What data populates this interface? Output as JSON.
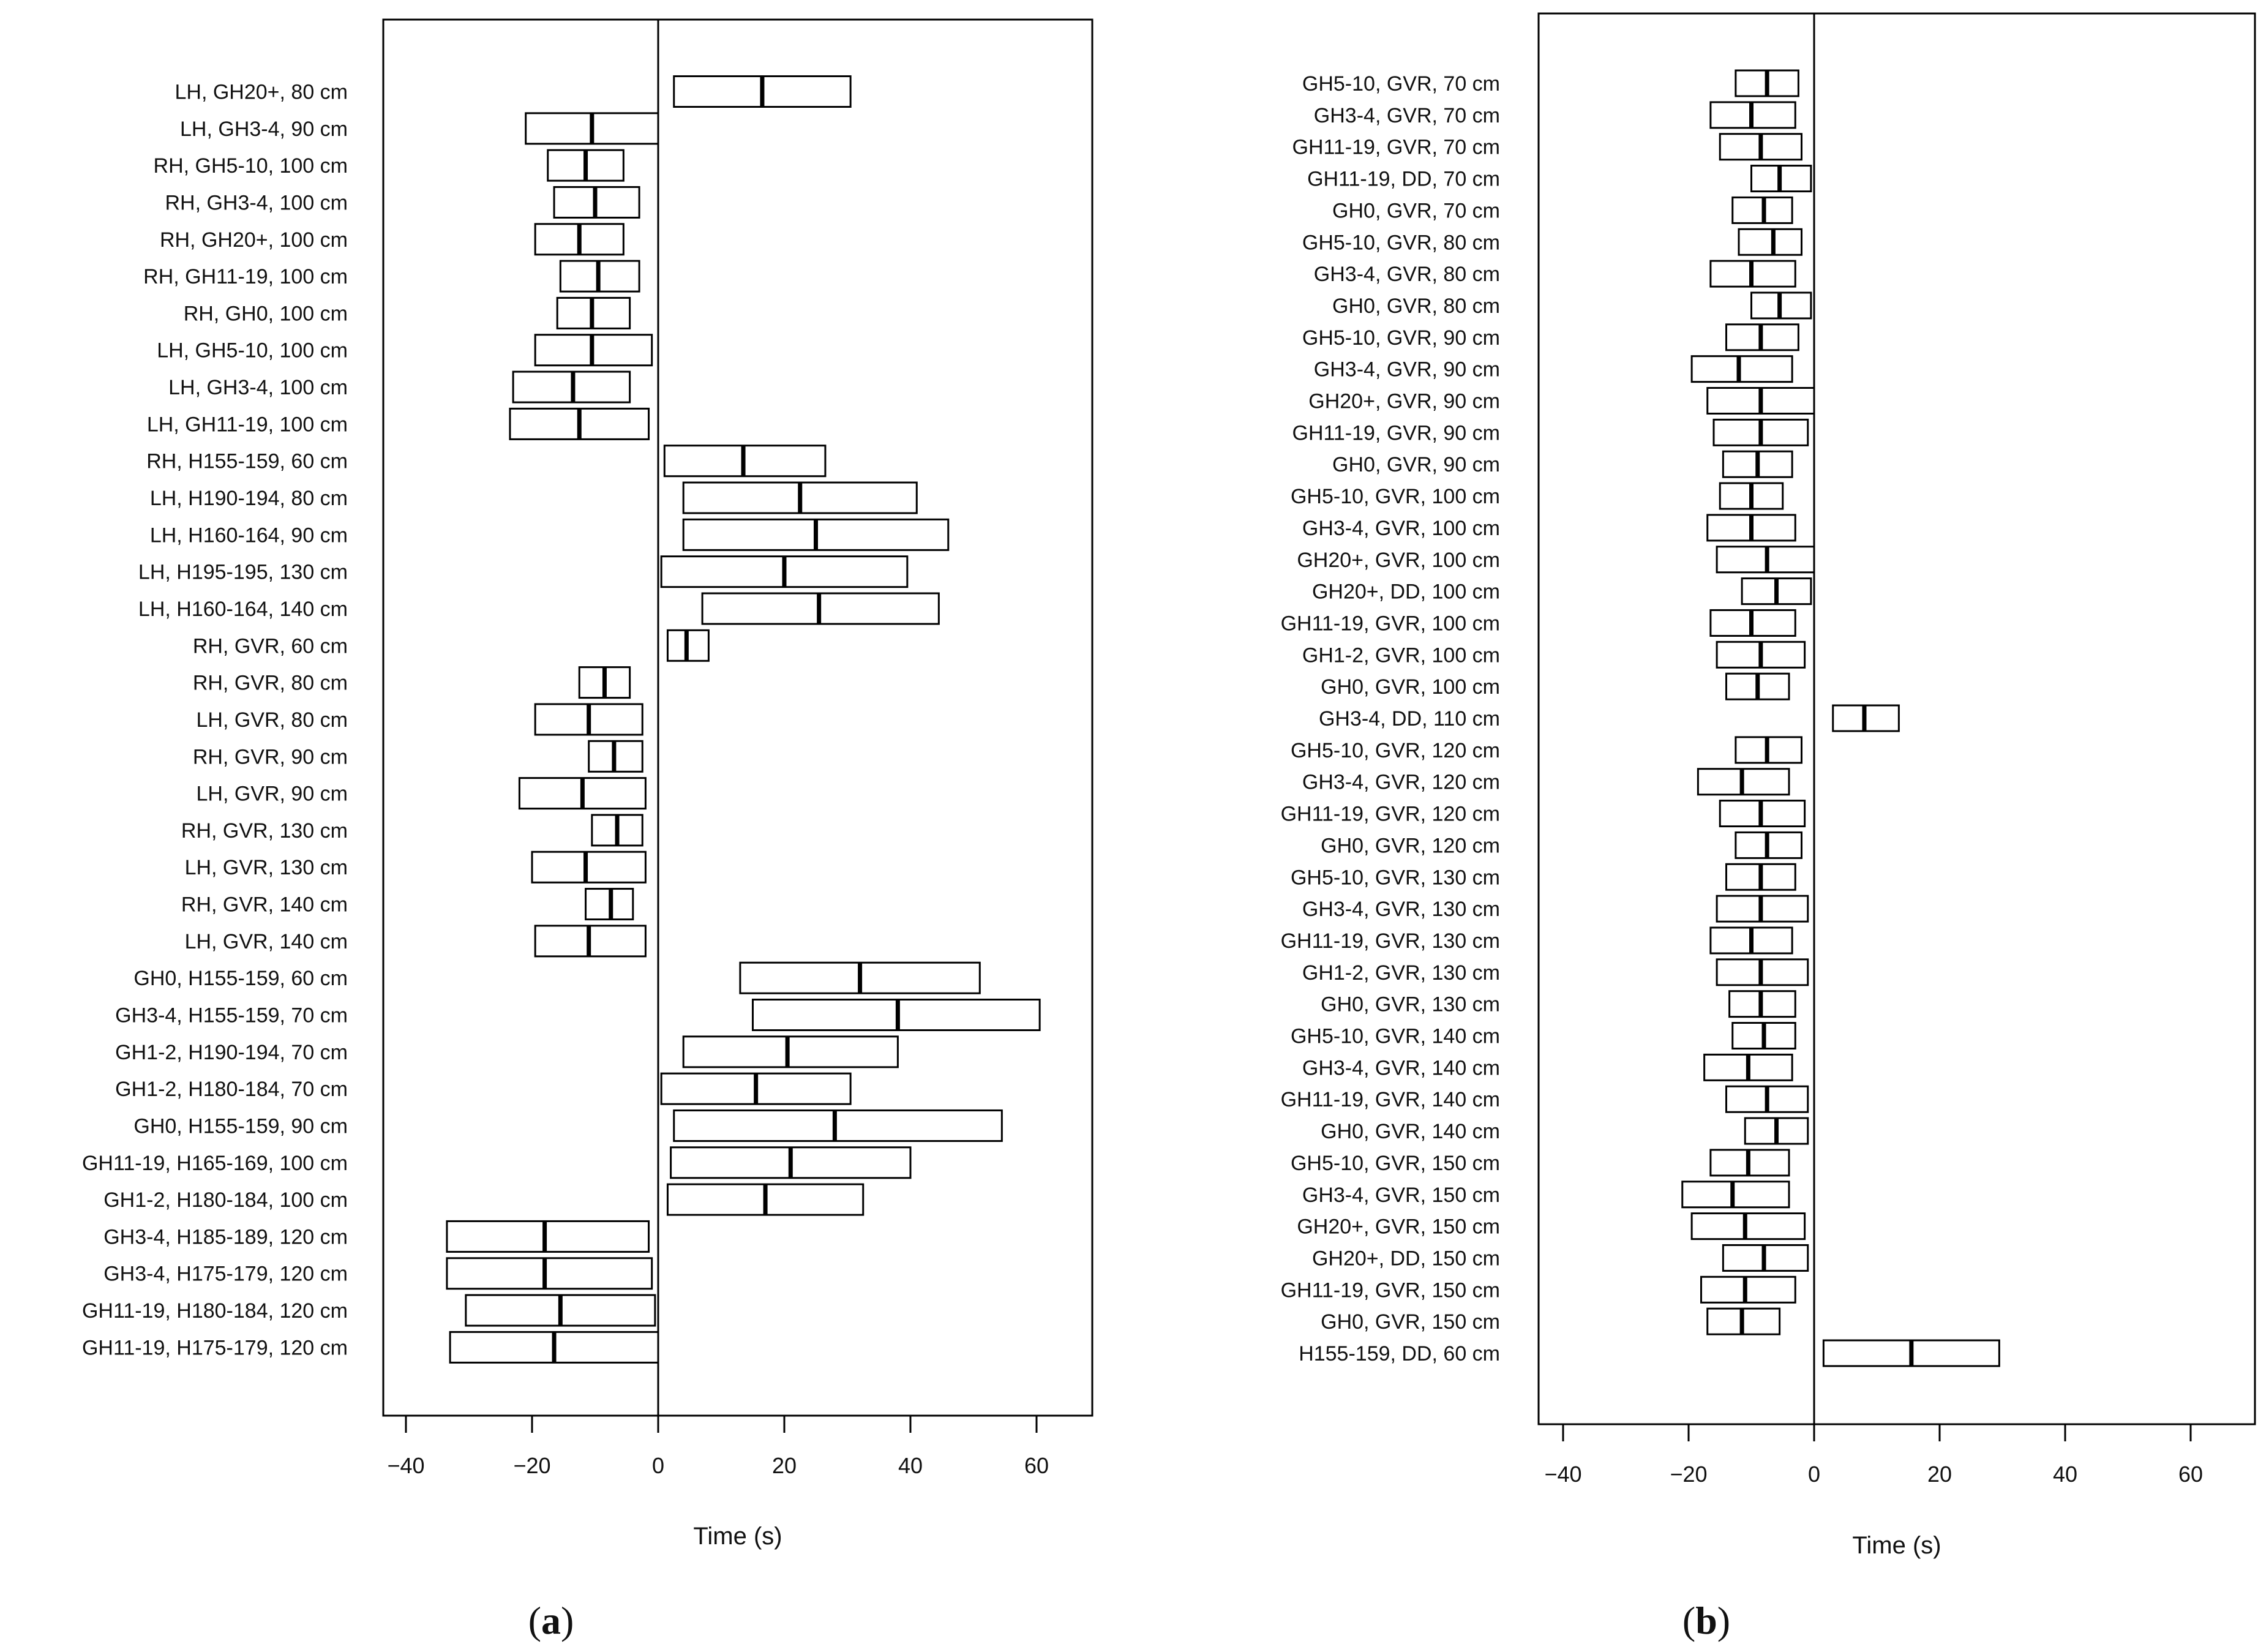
{
  "chart_data": [
    {
      "type": "box",
      "panel_label": "a",
      "title": "",
      "xlabel": "Time (s)",
      "ylabel": "",
      "xlim": [
        -44,
        69
      ],
      "xticks": [
        -40,
        -20,
        0,
        20,
        40,
        60
      ],
      "reference_line": 0,
      "series": [
        {
          "label": "LH, GH20+, 80 cm",
          "low": 2.5,
          "median": 16.5,
          "high": 30.5
        },
        {
          "label": "LH, GH3-4, 90 cm",
          "low": -21,
          "median": -10.5,
          "high": 0
        },
        {
          "label": "RH, GH5-10, 100 cm",
          "low": -17.5,
          "median": -11.5,
          "high": -5.5
        },
        {
          "label": "RH, GH3-4, 100 cm",
          "low": -16.5,
          "median": -10,
          "high": -3
        },
        {
          "label": "RH, GH20+, 100 cm",
          "low": -19.5,
          "median": -12.5,
          "high": -5.5
        },
        {
          "label": "RH, GH11-19, 100 cm",
          "low": -15.5,
          "median": -9.5,
          "high": -3
        },
        {
          "label": "RH, GH0, 100 cm",
          "low": -16,
          "median": -10.5,
          "high": -4.5
        },
        {
          "label": "LH, GH5-10, 100 cm",
          "low": -19.5,
          "median": -10.5,
          "high": -1
        },
        {
          "label": "LH, GH3-4, 100 cm",
          "low": -23,
          "median": -13.5,
          "high": -4.5
        },
        {
          "label": "LH, GH11-19, 100 cm",
          "low": -23.5,
          "median": -12.5,
          "high": -1.5
        },
        {
          "label": "RH, H155-159, 60 cm",
          "low": 1,
          "median": 13.5,
          "high": 26.5
        },
        {
          "label": "LH, H190-194, 80 cm",
          "low": 4,
          "median": 22.5,
          "high": 41
        },
        {
          "label": "LH, H160-164, 90 cm",
          "low": 4,
          "median": 25,
          "high": 46
        },
        {
          "label": "LH, H195-195, 130 cm",
          "low": 0.5,
          "median": 20,
          "high": 39.5
        },
        {
          "label": "LH, H160-164, 140 cm",
          "low": 7,
          "median": 25.5,
          "high": 44.5
        },
        {
          "label": "RH, GVR, 60 cm",
          "low": 1.5,
          "median": 4.5,
          "high": 8
        },
        {
          "label": "RH, GVR, 80 cm",
          "low": -12.5,
          "median": -8.5,
          "high": -4.5
        },
        {
          "label": "LH, GVR, 80 cm",
          "low": -19.5,
          "median": -11,
          "high": -2.5
        },
        {
          "label": "RH, GVR, 90 cm",
          "low": -11,
          "median": -7,
          "high": -2.5
        },
        {
          "label": "LH, GVR, 90 cm",
          "low": -22,
          "median": -12,
          "high": -2
        },
        {
          "label": "RH, GVR, 130 cm",
          "low": -10.5,
          "median": -6.5,
          "high": -2.5
        },
        {
          "label": "LH, GVR, 130 cm",
          "low": -20,
          "median": -11.5,
          "high": -2
        },
        {
          "label": "RH, GVR, 140 cm",
          "low": -11.5,
          "median": -7.5,
          "high": -4
        },
        {
          "label": "LH, GVR, 140 cm",
          "low": -19.5,
          "median": -11,
          "high": -2
        },
        {
          "label": "GH0, H155-159, 60 cm",
          "low": 13,
          "median": 32,
          "high": 51
        },
        {
          "label": "GH3-4, H155-159, 70 cm",
          "low": 15,
          "median": 38,
          "high": 60.5
        },
        {
          "label": "GH1-2, H190-194, 70 cm",
          "low": 4,
          "median": 20.5,
          "high": 38
        },
        {
          "label": "GH1-2, H180-184, 70 cm",
          "low": 0.5,
          "median": 15.5,
          "high": 30.5
        },
        {
          "label": "GH0, H155-159, 90 cm",
          "low": 2.5,
          "median": 28,
          "high": 54.5
        },
        {
          "label": "GH11-19, H165-169, 100 cm",
          "low": 2,
          "median": 21,
          "high": 40
        },
        {
          "label": "GH1-2, H180-184, 100 cm",
          "low": 1.5,
          "median": 17,
          "high": 32.5
        },
        {
          "label": "GH3-4, H185-189, 120 cm",
          "low": -33.5,
          "median": -18,
          "high": -1.5
        },
        {
          "label": "GH3-4, H175-179, 120 cm",
          "low": -33.5,
          "median": -18,
          "high": -1
        },
        {
          "label": "GH11-19, H180-184, 120 cm",
          "low": -30.5,
          "median": -15.5,
          "high": -0.5
        },
        {
          "label": "GH11-19, H175-179, 120 cm",
          "low": -33,
          "median": -16.5,
          "high": 0
        }
      ]
    },
    {
      "type": "box",
      "panel_label": "b",
      "title": "",
      "xlabel": "Time (s)",
      "ylabel": "",
      "xlim": [
        -44,
        70
      ],
      "xticks": [
        -40,
        -20,
        0,
        20,
        40,
        60
      ],
      "reference_line": 0,
      "series": [
        {
          "label": "GH5-10, GVR, 70 cm",
          "low": -12.5,
          "median": -7.5,
          "high": -2.5
        },
        {
          "label": "GH3-4, GVR, 70 cm",
          "low": -16.5,
          "median": -10,
          "high": -3
        },
        {
          "label": "GH11-19, GVR, 70 cm",
          "low": -15,
          "median": -8.5,
          "high": -2
        },
        {
          "label": "GH11-19, DD, 70 cm",
          "low": -10,
          "median": -5.5,
          "high": -0.5
        },
        {
          "label": "GH0, GVR, 70 cm",
          "low": -13,
          "median": -8,
          "high": -3.5
        },
        {
          "label": "GH5-10, GVR, 80 cm",
          "low": -12,
          "median": -6.5,
          "high": -2
        },
        {
          "label": "GH3-4, GVR, 80 cm",
          "low": -16.5,
          "median": -10,
          "high": -3
        },
        {
          "label": "GH0, GVR, 80 cm",
          "low": -10,
          "median": -5.5,
          "high": -0.5
        },
        {
          "label": "GH5-10, GVR, 90 cm",
          "low": -14,
          "median": -8.5,
          "high": -2.5
        },
        {
          "label": "GH3-4, GVR, 90 cm",
          "low": -19.5,
          "median": -12,
          "high": -3.5
        },
        {
          "label": "GH20+, GVR, 90 cm",
          "low": -17,
          "median": -8.5,
          "high": 0
        },
        {
          "label": "GH11-19, GVR, 90 cm",
          "low": -16,
          "median": -8.5,
          "high": -1
        },
        {
          "label": "GH0, GVR, 90 cm",
          "low": -14.5,
          "median": -9,
          "high": -3.5
        },
        {
          "label": "GH5-10, GVR, 100 cm",
          "low": -15,
          "median": -10,
          "high": -5
        },
        {
          "label": "GH3-4, GVR, 100 cm",
          "low": -17,
          "median": -10,
          "high": -3
        },
        {
          "label": "GH20+, GVR, 100 cm",
          "low": -15.5,
          "median": -7.5,
          "high": 0
        },
        {
          "label": "GH20+, DD, 100 cm",
          "low": -11.5,
          "median": -6,
          "high": -0.5
        },
        {
          "label": "GH11-19, GVR, 100 cm",
          "low": -16.5,
          "median": -10,
          "high": -3
        },
        {
          "label": "GH1-2, GVR, 100 cm",
          "low": -15.5,
          "median": -8.5,
          "high": -1.5
        },
        {
          "label": "GH0, GVR, 100 cm",
          "low": -14,
          "median": -9,
          "high": -4
        },
        {
          "label": "GH3-4, DD, 110 cm",
          "low": 3,
          "median": 8,
          "high": 13.5
        },
        {
          "label": "GH5-10, GVR, 120 cm",
          "low": -12.5,
          "median": -7.5,
          "high": -2
        },
        {
          "label": "GH3-4, GVR, 120 cm",
          "low": -18.5,
          "median": -11.5,
          "high": -4
        },
        {
          "label": "GH11-19, GVR, 120 cm",
          "low": -15,
          "median": -8.5,
          "high": -1.5
        },
        {
          "label": "GH0, GVR, 120 cm",
          "low": -12.5,
          "median": -7.5,
          "high": -2
        },
        {
          "label": "GH5-10, GVR, 130 cm",
          "low": -14,
          "median": -8.5,
          "high": -3
        },
        {
          "label": "GH3-4, GVR, 130 cm",
          "low": -15.5,
          "median": -8.5,
          "high": -1
        },
        {
          "label": "GH11-19, GVR, 130 cm",
          "low": -16.5,
          "median": -10,
          "high": -3.5
        },
        {
          "label": "GH1-2, GVR, 130 cm",
          "low": -15.5,
          "median": -8.5,
          "high": -1
        },
        {
          "label": "GH0, GVR, 130 cm",
          "low": -13.5,
          "median": -8.5,
          "high": -3
        },
        {
          "label": "GH5-10, GVR, 140 cm",
          "low": -13,
          "median": -8,
          "high": -3
        },
        {
          "label": "GH3-4, GVR, 140 cm",
          "low": -17.5,
          "median": -10.5,
          "high": -3.5
        },
        {
          "label": "GH11-19, GVR, 140 cm",
          "low": -14,
          "median": -7.5,
          "high": -1
        },
        {
          "label": "GH0, GVR, 140 cm",
          "low": -11,
          "median": -6,
          "high": -1
        },
        {
          "label": "GH5-10, GVR, 150 cm",
          "low": -16.5,
          "median": -10.5,
          "high": -4
        },
        {
          "label": "GH3-4, GVR, 150 cm",
          "low": -21,
          "median": -13,
          "high": -4
        },
        {
          "label": "GH20+, GVR, 150 cm",
          "low": -19.5,
          "median": -11,
          "high": -1.5
        },
        {
          "label": "GH20+, DD, 150 cm",
          "low": -14.5,
          "median": -8,
          "high": -1
        },
        {
          "label": "GH11-19, GVR, 150 cm",
          "low": -18,
          "median": -11,
          "high": -3
        },
        {
          "label": "GH0, GVR, 150 cm",
          "low": -17,
          "median": -11.5,
          "high": -5.5
        },
        {
          "label": "H155-159, DD, 60 cm",
          "low": 1.5,
          "median": 15.5,
          "high": 29.5
        }
      ]
    }
  ]
}
